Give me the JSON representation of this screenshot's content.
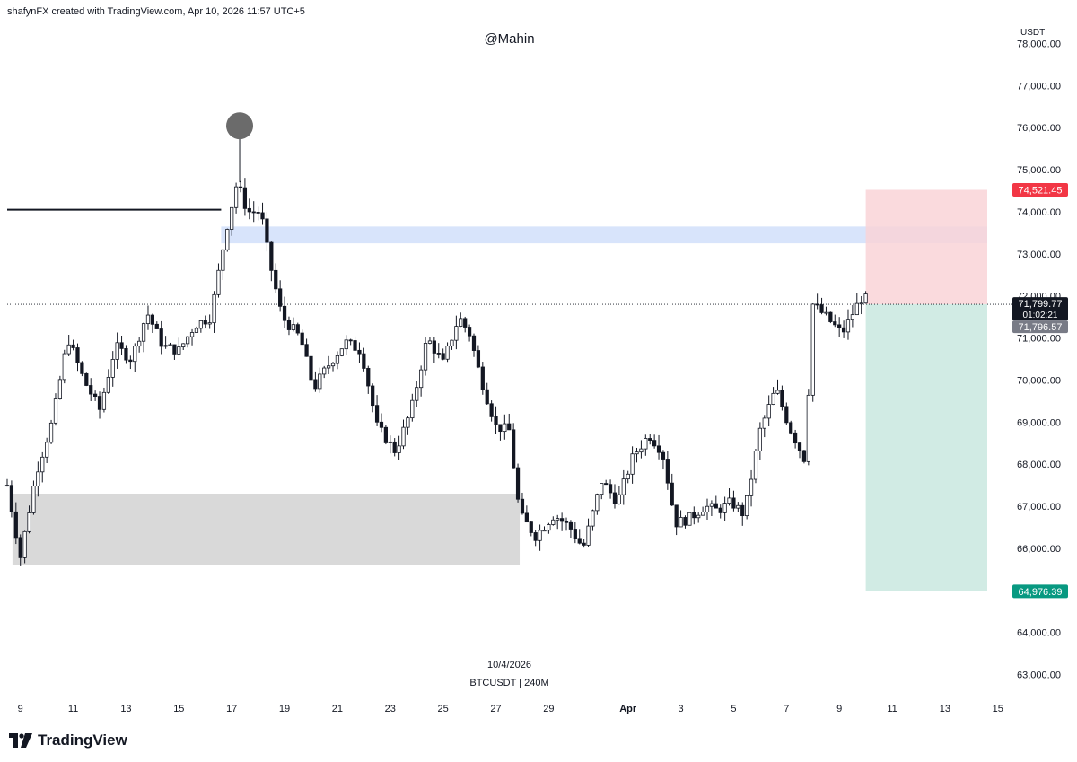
{
  "header": {
    "attribution": "shafynFX created with TradingView.com, Apr 10, 2026 11:57 UTC+5",
    "title": "@Mahin"
  },
  "footer": {
    "date": "10/4/2026",
    "symbol": "BTCUSDT | 240M",
    "logo_text": "TradingView"
  },
  "chart_data": {
    "type": "candlestick",
    "currency_label": "USDT",
    "ylim": [
      62500,
      78500
    ],
    "y_ticks": [
      "63,000.00",
      "64,000.00",
      "65,000.00",
      "66,000.00",
      "67,000.00",
      "68,000.00",
      "69,000.00",
      "70,000.00",
      "71,000.00",
      "72,000.00",
      "73,000.00",
      "74,000.00",
      "75,000.00",
      "76,000.00",
      "77,000.00",
      "78,000.00"
    ],
    "x_ticks": [
      "9",
      "11",
      "13",
      "15",
      "17",
      "19",
      "21",
      "23",
      "25",
      "27",
      "29",
      "Apr",
      "3",
      "5",
      "7",
      "9",
      "11",
      "13",
      "15"
    ],
    "x_range_days": [
      8.5,
      45.6
    ],
    "x_tick_days": [
      9,
      11,
      13,
      15,
      17,
      19,
      21,
      23,
      25,
      27,
      29,
      32,
      34,
      36,
      38,
      40,
      42,
      44,
      46
    ],
    "waypoints": [
      [
        8.5,
        67500
      ],
      [
        9.0,
        65800
      ],
      [
        9.6,
        67800
      ],
      [
        10.2,
        69000
      ],
      [
        10.8,
        71000
      ],
      [
        11.4,
        70000
      ],
      [
        12.0,
        69300
      ],
      [
        12.6,
        70800
      ],
      [
        13.2,
        70500
      ],
      [
        13.8,
        71600
      ],
      [
        14.4,
        70800
      ],
      [
        15.0,
        70700
      ],
      [
        15.6,
        71300
      ],
      [
        16.2,
        71500
      ],
      [
        16.8,
        73600
      ],
      [
        17.2,
        74700
      ],
      [
        17.6,
        74000
      ],
      [
        18.1,
        74000
      ],
      [
        18.4,
        72900
      ],
      [
        18.9,
        71500
      ],
      [
        19.6,
        71000
      ],
      [
        20.1,
        69800
      ],
      [
        20.6,
        70300
      ],
      [
        21.3,
        70900
      ],
      [
        21.9,
        70700
      ],
      [
        22.5,
        68900
      ],
      [
        23.2,
        68300
      ],
      [
        23.8,
        69300
      ],
      [
        24.4,
        71000
      ],
      [
        25.0,
        70400
      ],
      [
        25.6,
        71500
      ],
      [
        26.0,
        71100
      ],
      [
        26.4,
        70100
      ],
      [
        27.0,
        68900
      ],
      [
        27.5,
        68800
      ],
      [
        27.9,
        66800
      ],
      [
        28.5,
        66300
      ],
      [
        29.2,
        66800
      ],
      [
        29.8,
        66500
      ],
      [
        30.3,
        66000
      ],
      [
        31.0,
        67600
      ],
      [
        31.6,
        67100
      ],
      [
        32.2,
        68200
      ],
      [
        32.8,
        68700
      ],
      [
        33.3,
        68300
      ],
      [
        33.8,
        66600
      ],
      [
        34.3,
        66700
      ],
      [
        34.9,
        67000
      ],
      [
        35.4,
        66900
      ],
      [
        35.9,
        67100
      ],
      [
        36.4,
        66800
      ],
      [
        37.0,
        68800
      ],
      [
        37.6,
        69800
      ],
      [
        38.1,
        68900
      ],
      [
        38.7,
        68100
      ],
      [
        39.0,
        71800
      ],
      [
        39.5,
        71500
      ],
      [
        40.1,
        71100
      ],
      [
        40.6,
        71700
      ],
      [
        40.9,
        72000
      ],
      [
        41.15,
        71800
      ]
    ],
    "last_price": 71799.77,
    "countdown": "01:02:21",
    "bid_price": 71796.57,
    "peak": {
      "day": 17.3,
      "price": 76000
    },
    "annotations": {
      "resistance_line": {
        "from_day": 8.5,
        "to_day": 16.6,
        "price": 74050
      },
      "blue_zone": {
        "from_day": 16.6,
        "to_day": 45.6,
        "low": 73250,
        "high": 73650
      },
      "gray_zone": {
        "from_day": 8.7,
        "to_day": 27.9,
        "low": 65600,
        "high": 67300
      },
      "position": {
        "from_day": 41.0,
        "to_day": 45.6,
        "entry": 71799.77,
        "stop": 74521.45,
        "target": 64976.39,
        "stop_label": "74,521.45",
        "target_label": "64,976.39"
      }
    },
    "price_labels": {
      "last": "71,799.77",
      "bid": "71,796.57"
    },
    "colors": {
      "stop_zone": "#f9d3d7",
      "target_zone": "#cfeae3",
      "stop_label": "#f23645",
      "target_label": "#089981",
      "blue_zone": "#d4e1fb",
      "gray_zone": "#d9d9d9",
      "last_label": "#131722",
      "bid_label": "#787b86",
      "peak_marker": "#6b6b6b"
    }
  }
}
